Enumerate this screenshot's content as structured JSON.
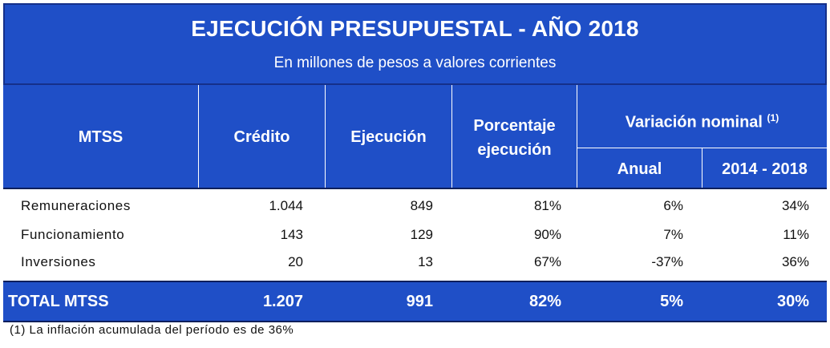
{
  "title": "EJECUCIÓN PRESUPUESTAL - AÑO 2018",
  "subtitle": "En millones de pesos a valores corrientes",
  "headers": {
    "mtss": "MTSS",
    "credito": "Crédito",
    "ejecucion": "Ejecución",
    "porcentaje_line1": "Porcentaje",
    "porcentaje_line2": "ejecución",
    "variacion": "Variación nominal",
    "variacion_note": "(1)",
    "anual": "Anual",
    "periodo": "2014 - 2018"
  },
  "rows": [
    {
      "label": "Remuneraciones",
      "credito": "1.044",
      "ejecucion": "849",
      "porcentaje": "81%",
      "anual": "6%",
      "periodo": "34%"
    },
    {
      "label": "Funcionamiento",
      "credito": "143",
      "ejecucion": "129",
      "porcentaje": "90%",
      "anual": "7%",
      "periodo": "11%"
    },
    {
      "label": "Inversiones",
      "credito": "20",
      "ejecucion": "13",
      "porcentaje": "67%",
      "anual": "-37%",
      "periodo": "36%"
    }
  ],
  "total": {
    "label": "TOTAL MTSS",
    "credito": "1.207",
    "ejecucion": "991",
    "porcentaje": "82%",
    "anual": "5%",
    "periodo": "30%"
  },
  "footnote": "(1) La inflación acumulada del período es de 36%",
  "colors": {
    "header_blue": "#1F4FC7",
    "rule_dark": "#0d1f5c"
  }
}
